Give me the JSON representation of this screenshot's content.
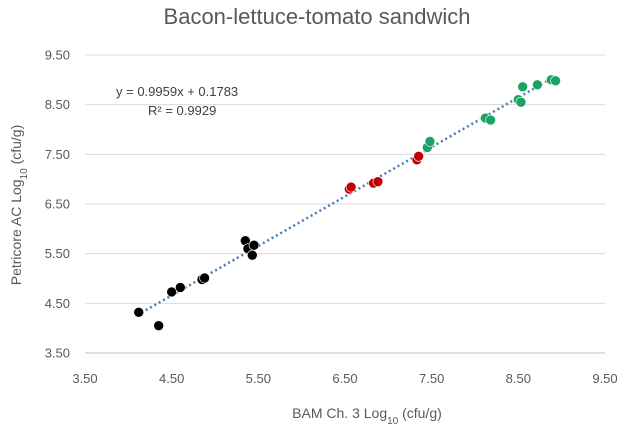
{
  "chart_data": {
    "type": "scatter",
    "title": "Bacon-lettuce-tomato sandwich",
    "xlabel": {
      "prefix": "BAM Ch. 3 Log",
      "sub": "10",
      "suffix": " (cfu/g)"
    },
    "ylabel": {
      "prefix": "Petricore AC Log",
      "sub": "10",
      "suffix": " (cfu/g)"
    },
    "xlim": [
      3.5,
      9.5
    ],
    "ylim": [
      3.5,
      9.5
    ],
    "xticks": [
      "3.50",
      "4.50",
      "5.50",
      "6.50",
      "7.50",
      "8.50",
      "9.50"
    ],
    "yticks": [
      "3.50",
      "4.50",
      "5.50",
      "6.50",
      "7.50",
      "8.50",
      "9.50"
    ],
    "grid": "horizontal",
    "legend": "none",
    "annotations": {
      "equation": "y = 0.9959x + 0.1783",
      "r2": "R² = 0.9929"
    },
    "trendline": {
      "slope": 0.9959,
      "intercept": 0.1783,
      "x_range": [
        4.1,
        8.95
      ],
      "color": "#4a7ab5"
    },
    "series": [
      {
        "color": "#000000",
        "points": [
          [
            4.12,
            4.32
          ],
          [
            4.35,
            4.05
          ],
          [
            4.5,
            4.73
          ],
          [
            4.6,
            4.82
          ],
          [
            4.85,
            4.98
          ],
          [
            4.88,
            5.01
          ],
          [
            5.35,
            5.76
          ],
          [
            5.38,
            5.6
          ],
          [
            5.43,
            5.47
          ],
          [
            5.45,
            5.67
          ]
        ]
      },
      {
        "color": "#c00000",
        "points": [
          [
            6.55,
            6.8
          ],
          [
            6.57,
            6.84
          ],
          [
            6.83,
            6.92
          ],
          [
            6.88,
            6.95
          ],
          [
            7.33,
            7.39
          ],
          [
            7.35,
            7.46
          ]
        ]
      },
      {
        "color": "#1aa364",
        "points": [
          [
            7.45,
            7.64
          ],
          [
            7.48,
            7.76
          ],
          [
            8.12,
            8.23
          ],
          [
            8.18,
            8.19
          ],
          [
            8.5,
            8.6
          ],
          [
            8.53,
            8.55
          ],
          [
            8.55,
            8.86
          ],
          [
            8.72,
            8.9
          ],
          [
            8.88,
            9.0
          ],
          [
            8.93,
            8.98
          ]
        ]
      }
    ]
  }
}
